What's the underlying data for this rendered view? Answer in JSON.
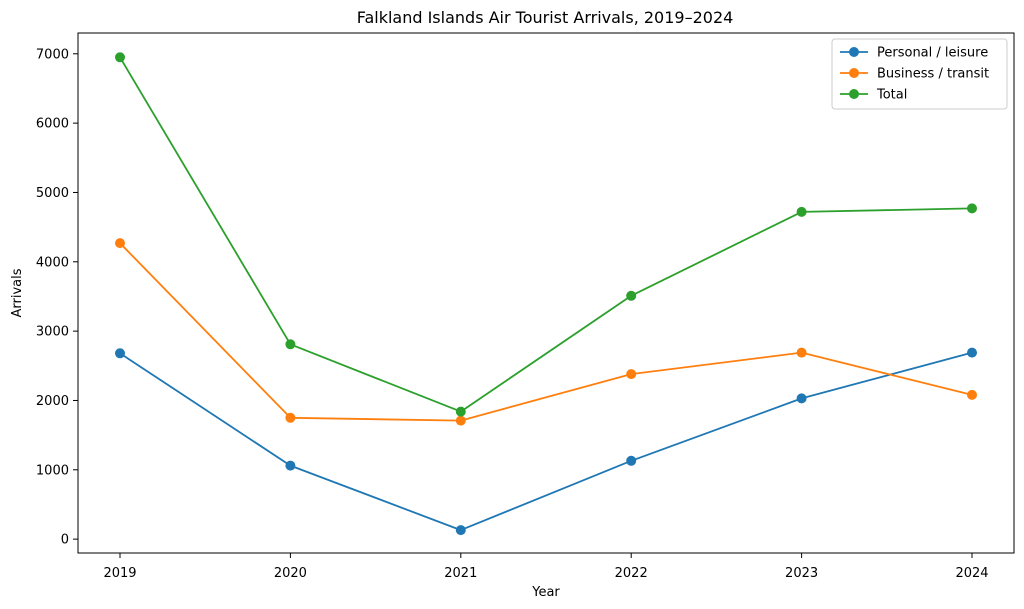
{
  "chart_data": {
    "type": "line",
    "title": "Falkland Islands Air Tourist Arrivals, 2019–2024",
    "xlabel": "Year",
    "ylabel": "Arrivals",
    "x": [
      "2019",
      "2020",
      "2021",
      "2022",
      "2023",
      "2024"
    ],
    "ylim": [
      -200,
      7300
    ],
    "yticks": [
      0,
      1000,
      2000,
      3000,
      4000,
      5000,
      6000,
      7000
    ],
    "grid": false,
    "legend_position": "top-right",
    "series": [
      {
        "name": "Personal / leisure",
        "color": "#1f77b4",
        "values": [
          2680,
          1060,
          130,
          1130,
          2030,
          2690
        ]
      },
      {
        "name": "Business / transit",
        "color": "#ff7f0e",
        "values": [
          4270,
          1750,
          1710,
          2380,
          2690,
          2080
        ]
      },
      {
        "name": "Total",
        "color": "#2ca02c",
        "values": [
          6950,
          2810,
          1840,
          3510,
          4720,
          4770
        ]
      }
    ]
  }
}
